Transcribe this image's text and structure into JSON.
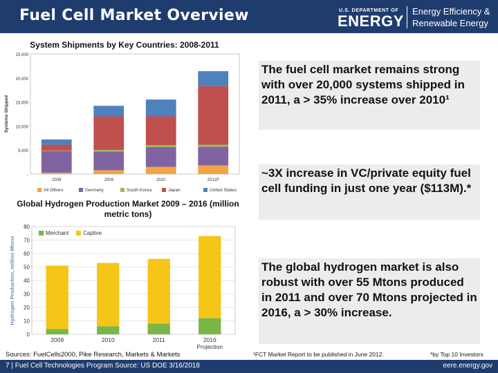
{
  "header": {
    "title": "Fuel Cell Market Overview",
    "doe_small": "U.S. DEPARTMENT OF",
    "doe_big": "ENERGY",
    "eere_line1": "Energy Efficiency &",
    "eere_line2": "Renewable Energy"
  },
  "notes": {
    "shipments": "The fuel cell market remains strong with over 20,000 systems shipped in 2011, a > 35% increase over 2010¹",
    "funding": "~3X increase in VC/private equity fuel cell funding in just one year ($113M).*",
    "hydrogen": "The global hydrogen market is also robust with over 55 Mtons produced in 2011 and over 70 Mtons projected in 2016, a > 30% increase."
  },
  "sources": "Sources: FuelCells2000, Pike Research, Markets & Markets",
  "footnotes": {
    "fn1": "¹FCT Market Report to be published in June 2012.",
    "fn2": "*by Top 10 Investors"
  },
  "footer": {
    "left": "7 | Fuel Cell Technologies Program Source: US DOE 3/16/2018",
    "right": "eere.energy.gov"
  },
  "colors": {
    "navy": "#1f3c6e",
    "all_others": "#f4a443",
    "germany": "#8064a2",
    "south_korea": "#9bbb59",
    "japan": "#c0504d",
    "united_states": "#4f81bd",
    "merchant": "#7ab648",
    "captive": "#f5c518"
  },
  "chart_data": [
    {
      "type": "bar",
      "stacked": true,
      "title": "System Shipments by Key Countries: 2008-2011",
      "ylabel": "Systems Shipped",
      "xlabel": "",
      "categories": [
        "2008",
        "2009",
        "2010",
        "2011P"
      ],
      "ylim": [
        0,
        25000
      ],
      "yticks": [
        0,
        5000,
        10000,
        15000,
        20000,
        25000
      ],
      "ytick_labels": [
        "-",
        "5,000",
        "10,000",
        "15,000",
        "20,000",
        "25,000"
      ],
      "series": [
        {
          "name": "All Others",
          "color_key": "all_others",
          "values": [
            300,
            800,
            1500,
            1800
          ]
        },
        {
          "name": "Germany",
          "color_key": "germany",
          "values": [
            4500,
            3900,
            4100,
            3900
          ]
        },
        {
          "name": "South Korea",
          "color_key": "south_korea",
          "values": [
            100,
            300,
            400,
            400
          ]
        },
        {
          "name": "Japan",
          "color_key": "japan",
          "values": [
            1200,
            7000,
            6000,
            12200
          ]
        },
        {
          "name": "United States",
          "color_key": "united_states",
          "values": [
            1100,
            2200,
            3500,
            3100
          ]
        }
      ],
      "legend": "bottom",
      "grid": false
    },
    {
      "type": "bar",
      "stacked": true,
      "title": "Global Hydrogen Production Market 2009 – 2016 (million metric tons)",
      "ylabel": "Hydrogen Production, million Mtons",
      "xlabel": "",
      "categories": [
        "2009",
        "2010",
        "2011",
        "2016"
      ],
      "category_sublabels": [
        "",
        "",
        "",
        "Projection"
      ],
      "ylim": [
        0,
        80
      ],
      "yticks": [
        0,
        10,
        20,
        30,
        40,
        50,
        60,
        70,
        80
      ],
      "ytick_labels": [
        "0",
        "10",
        "20",
        "30",
        "40",
        "50",
        "60",
        "70",
        "80"
      ],
      "series": [
        {
          "name": "Merchant",
          "color_key": "merchant",
          "values": [
            4,
            6,
            8,
            12
          ]
        },
        {
          "name": "Captive",
          "color_key": "captive",
          "values": [
            47,
            47,
            48,
            61
          ]
        }
      ],
      "legend": "top-left",
      "grid": true
    }
  ]
}
